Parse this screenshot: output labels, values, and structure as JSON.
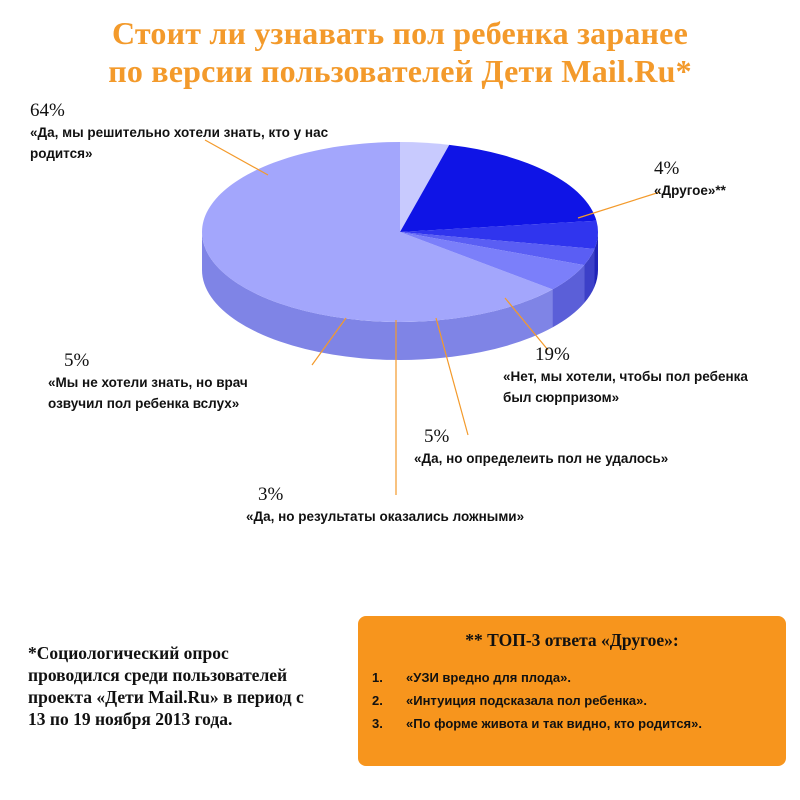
{
  "title": {
    "line1": "Стоит ли узнавать пол ребенка заранее",
    "line2": "по версии пользователей Дети Mail.Ru*"
  },
  "chart_data": {
    "type": "pie",
    "title": "Стоит ли узнавать пол ребенка заранее по версии пользователей Дети Mail.Ru*",
    "slices": [
      {
        "label": "«Да, мы решительно хотели знать, кто у нас родится»",
        "value": 64,
        "pct_text": "64%",
        "color": "#a3a6fc",
        "side": "#7f84e6"
      },
      {
        "label": "«Другое»**",
        "value": 4,
        "pct_text": "4%",
        "color": "#c8cafe",
        "side": "#a7aaf0"
      },
      {
        "label": "«Нет, мы хотели, чтобы пол ребенка был сюрпризом»",
        "value": 19,
        "pct_text": "19%",
        "color": "#0f14e6",
        "side": "#0a0ca6"
      },
      {
        "label": "«Да, но определеить пол не удалось»",
        "value": 5,
        "pct_text": "5%",
        "color": "#3035ee",
        "side": "#2024b8"
      },
      {
        "label": "«Да, но результаты оказались ложными»",
        "value": 3,
        "pct_text": "3%",
        "color": "#5a5ef4",
        "side": "#3c40c8"
      },
      {
        "label": "«Мы не хотели знать, но врач озвучил пол ребенка вслух»",
        "value": 5,
        "pct_text": "5%",
        "color": "#7b7ffa",
        "side": "#5b5fd8"
      }
    ]
  },
  "labels": {
    "yes_want": {
      "pct": "64%",
      "line1": "«Да, мы решительно хотели знать, кто у нас",
      "line2": "родится»"
    },
    "other": {
      "pct": "4%",
      "line1": "«Другое»**"
    },
    "surprise": {
      "pct": "19%",
      "line1": "«Нет, мы хотели, чтобы пол ребенка",
      "line2": "был сюрпризом»"
    },
    "failed": {
      "pct": "5%",
      "line1": "«Да, но определеить пол не удалось»"
    },
    "false_results": {
      "pct": "3%",
      "line1": "«Да, но результаты оказались ложными»"
    },
    "doctor": {
      "pct": "5%",
      "line1": "«Мы не хотели знать, но врач",
      "line2": "озвучил  пол ребенка вслух»"
    }
  },
  "footnote": {
    "line1": "*Социологический опрос",
    "line2": "проводился среди пользователей",
    "line3": "проекта «Дети Mail.Ru» в период с",
    "line4": "13 по 19 ноября 2013 года."
  },
  "top3": {
    "title": "** ТОП-3 ответа «Другое»:",
    "items": [
      {
        "num": "1.",
        "text": "«УЗИ вредно для плода»."
      },
      {
        "num": "2.",
        "text": "«Интуиция подсказала пол ребенка»."
      },
      {
        "num": "3.",
        "text": "«По форме живота и так видно, кто родится»."
      }
    ]
  },
  "colors": {
    "title": "#f39a2b",
    "leader_line": "#f39a2b",
    "box_background": "#f7951d"
  }
}
